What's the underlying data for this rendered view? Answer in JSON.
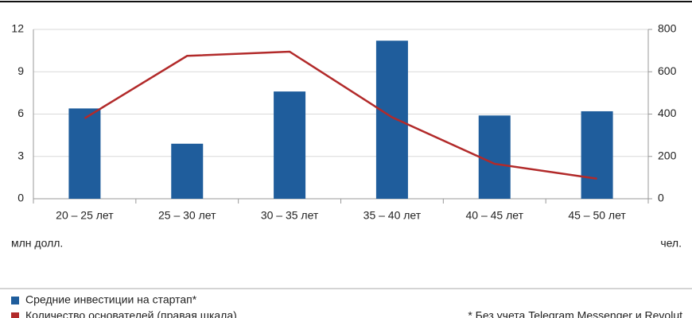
{
  "chart_data": {
    "type": "bar_line",
    "categories": [
      "20 – 25 лет",
      "25 – 30 лет",
      "30 – 35 лет",
      "35 – 40 лет",
      "40 – 45 лет",
      "45 – 50 лет"
    ],
    "y_label": "млн долл.",
    "y2_label": "чел.",
    "ylim": [
      0,
      12
    ],
    "yticks": [
      0,
      3,
      6,
      9,
      12
    ],
    "y2lim": [
      0,
      800
    ],
    "y2ticks": [
      0,
      200,
      400,
      600,
      800
    ],
    "grid": true,
    "series": [
      {
        "name": "Средние инвестиции на стартап*",
        "color": "#1f5d9c",
        "type": "bar",
        "values": [
          6.4,
          3.9,
          7.6,
          11.2,
          5.9,
          6.2
        ]
      },
      {
        "name": "Количество основателей (правая шкала)",
        "color": "#b22a2a",
        "type": "line",
        "axis": "y2",
        "values": [
          380,
          675,
          695,
          385,
          165,
          95
        ]
      }
    ],
    "footnote": "* Без учета Telegram Messenger и Revolut"
  }
}
